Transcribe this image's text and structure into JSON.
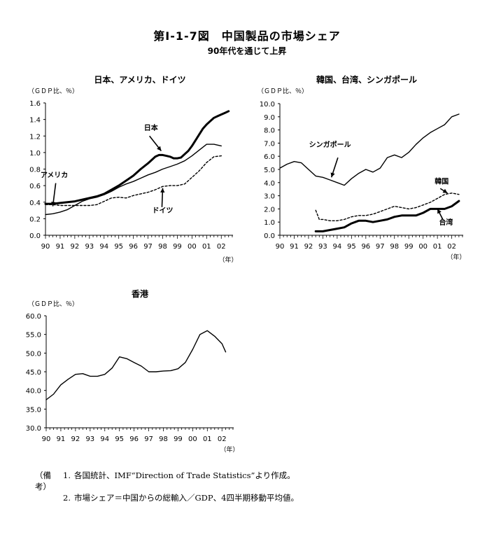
{
  "figure": {
    "title": "第Ⅰ-1-7図　中国製品の市場シェア",
    "subtitle": "90年代を通じて上昇"
  },
  "chart_data": [
    {
      "type": "line",
      "title": "日本、アメリカ、ドイツ",
      "ylabel": "（ＧＤＰ比、％）",
      "xlabel": "（年）",
      "categories": [
        "90",
        "91",
        "92",
        "93",
        "94",
        "95",
        "96",
        "97",
        "98",
        "99",
        "00",
        "01",
        "02"
      ],
      "ylim": [
        0,
        1.6
      ],
      "yticks": [
        "0.0",
        "0.2",
        "0.4",
        "0.6",
        "0.8",
        "1.0",
        "1.2",
        "1.4",
        "1.6"
      ],
      "series": [
        {
          "name": "日本",
          "style": "thick",
          "x": [
            1990.0,
            1990.5,
            1991.0,
            1991.5,
            1992.0,
            1992.5,
            1993.0,
            1993.5,
            1994.0,
            1994.5,
            1995.0,
            1995.5,
            1996.0,
            1996.5,
            1997.0,
            1997.25,
            1997.5,
            1997.75,
            1998.0,
            1998.25,
            1998.5,
            1998.75,
            1999.0,
            1999.25,
            1999.5,
            1999.75,
            2000.0,
            2000.25,
            2000.5,
            2000.75,
            2001.0,
            2001.25,
            2001.5,
            2001.75,
            2002.0,
            2002.25,
            2002.5
          ],
          "y": [
            0.38,
            0.38,
            0.39,
            0.4,
            0.41,
            0.43,
            0.45,
            0.47,
            0.5,
            0.55,
            0.6,
            0.66,
            0.72,
            0.8,
            0.87,
            0.91,
            0.95,
            0.97,
            0.97,
            0.96,
            0.95,
            0.93,
            0.93,
            0.94,
            0.98,
            1.02,
            1.08,
            1.15,
            1.22,
            1.29,
            1.34,
            1.38,
            1.42,
            1.44,
            1.46,
            1.48,
            1.5
          ]
        },
        {
          "name": "アメリカ",
          "style": "thin",
          "x": [
            1990.0,
            1990.5,
            1991.0,
            1991.5,
            1992.0,
            1992.5,
            1993.0,
            1993.5,
            1994.0,
            1994.5,
            1995.0,
            1995.5,
            1996.0,
            1996.5,
            1997.0,
            1997.5,
            1998.0,
            1998.5,
            1999.0,
            1999.5,
            2000.0,
            2000.5,
            2001.0,
            2001.5,
            2002.0
          ],
          "y": [
            0.25,
            0.26,
            0.28,
            0.31,
            0.36,
            0.41,
            0.44,
            0.46,
            0.49,
            0.53,
            0.58,
            0.62,
            0.65,
            0.69,
            0.73,
            0.76,
            0.8,
            0.83,
            0.86,
            0.9,
            0.96,
            1.03,
            1.1,
            1.1,
            1.08
          ]
        },
        {
          "name": "ドイツ",
          "style": "dashed",
          "x": [
            1990.0,
            1990.5,
            1991.0,
            1991.5,
            1992.0,
            1992.5,
            1993.0,
            1993.5,
            1994.0,
            1994.5,
            1995.0,
            1995.5,
            1996.0,
            1996.5,
            1997.0,
            1997.5,
            1998.0,
            1998.5,
            1999.0,
            1999.5,
            2000.0,
            2000.5,
            2001.0,
            2001.5,
            2002.0
          ],
          "y": [
            0.37,
            0.37,
            0.36,
            0.36,
            0.36,
            0.36,
            0.36,
            0.37,
            0.41,
            0.45,
            0.46,
            0.45,
            0.48,
            0.5,
            0.52,
            0.55,
            0.59,
            0.6,
            0.6,
            0.62,
            0.7,
            0.78,
            0.88,
            0.95,
            0.96
          ]
        }
      ],
      "labels": [
        {
          "text": "日本",
          "x": 1997.2,
          "y": 1.27,
          "ax": 1997.9,
          "ay": 1.02,
          "bx": 1997.1,
          "by": 1.2
        },
        {
          "text": "アメリカ",
          "x": 1990.6,
          "y": 0.7,
          "ax": 1990.5,
          "ay": 0.35,
          "bx": 1990.7,
          "by": 0.63
        },
        {
          "text": "ドイツ",
          "x": 1998.0,
          "y": 0.27,
          "ax": 1998.0,
          "ay": 0.57,
          "bx": 1997.95,
          "by": 0.34
        }
      ]
    },
    {
      "type": "line",
      "title": "韓国、台湾、シンガポール",
      "ylabel": "（ＧＤＰ比、％）",
      "xlabel": "（年）",
      "categories": [
        "90",
        "91",
        "92",
        "93",
        "94",
        "95",
        "96",
        "97",
        "98",
        "99",
        "00",
        "01",
        "02"
      ],
      "ylim": [
        0,
        10
      ],
      "yticks": [
        "0.0",
        "1.0",
        "2.0",
        "3.0",
        "4.0",
        "5.0",
        "6.0",
        "7.0",
        "8.0",
        "9.0",
        "10.0"
      ],
      "series": [
        {
          "name": "シンガポール",
          "style": "thin",
          "x": [
            1990.0,
            1990.5,
            1991.0,
            1991.5,
            1992.0,
            1992.5,
            1993.0,
            1993.5,
            1994.0,
            1994.5,
            1995.0,
            1995.5,
            1996.0,
            1996.5,
            1997.0,
            1997.5,
            1998.0,
            1998.5,
            1999.0,
            1999.5,
            2000.0,
            2000.5,
            2001.0,
            2001.5,
            2002.0,
            2002.5
          ],
          "y": [
            5.1,
            5.4,
            5.6,
            5.5,
            5.0,
            4.5,
            4.4,
            4.2,
            4.0,
            3.8,
            4.3,
            4.7,
            5.0,
            4.8,
            5.1,
            5.9,
            6.1,
            5.9,
            6.3,
            6.9,
            7.4,
            7.8,
            8.1,
            8.4,
            9.0,
            9.2
          ]
        },
        {
          "name": "韓国",
          "style": "dashed",
          "x": [
            1992.5,
            1992.75,
            1993.0,
            1993.5,
            1994.0,
            1994.5,
            1995.0,
            1995.5,
            1996.0,
            1996.5,
            1997.0,
            1997.5,
            1998.0,
            1998.5,
            1999.0,
            1999.5,
            2000.0,
            2000.5,
            2001.0,
            2001.5,
            2002.0,
            2002.5
          ],
          "y": [
            1.9,
            1.2,
            1.2,
            1.1,
            1.1,
            1.2,
            1.4,
            1.5,
            1.5,
            1.6,
            1.8,
            2.0,
            2.2,
            2.1,
            2.0,
            2.1,
            2.3,
            2.5,
            2.8,
            3.1,
            3.2,
            3.1
          ]
        },
        {
          "name": "台湾",
          "style": "thick",
          "x": [
            1992.5,
            1993.0,
            1993.5,
            1994.0,
            1994.5,
            1995.0,
            1995.5,
            1996.0,
            1996.5,
            1997.0,
            1997.5,
            1998.0,
            1998.5,
            1999.0,
            1999.5,
            2000.0,
            2000.5,
            2001.0,
            2001.5,
            2002.0,
            2002.5
          ],
          "y": [
            0.3,
            0.3,
            0.4,
            0.5,
            0.6,
            0.9,
            1.1,
            1.1,
            1.0,
            1.1,
            1.2,
            1.4,
            1.5,
            1.5,
            1.5,
            1.7,
            2.0,
            2.0,
            2.0,
            2.2,
            2.6
          ]
        }
      ],
      "labels": [
        {
          "text": "シンガポール",
          "x": 1993.5,
          "y": 6.7,
          "ax": 1993.6,
          "ay": 4.4,
          "bx": 1994.05,
          "by": 5.9
        },
        {
          "text": "韓国",
          "x": 2001.3,
          "y": 3.9,
          "ax": 2001.7,
          "ay": 3.2,
          "bx": 2001.2,
          "by": 3.55
        },
        {
          "text": "台湾",
          "x": 2001.6,
          "y": 0.8,
          "ax": 2001.0,
          "ay": 2.0,
          "bx": 2001.4,
          "by": 1.15
        }
      ]
    },
    {
      "type": "line",
      "title": "香港",
      "ylabel": "（ＧＤＰ比、％）",
      "xlabel": "（年）",
      "categories": [
        "90",
        "91",
        "92",
        "93",
        "94",
        "95",
        "96",
        "97",
        "98",
        "99",
        "00",
        "01",
        "02"
      ],
      "ylim": [
        30,
        60
      ],
      "yticks": [
        "30.0",
        "35.0",
        "40.0",
        "45.0",
        "50.0",
        "55.0",
        "60.0"
      ],
      "series": [
        {
          "name": "香港",
          "style": "thin",
          "x": [
            1990.0,
            1990.5,
            1991.0,
            1991.5,
            1992.0,
            1992.5,
            1993.0,
            1993.5,
            1994.0,
            1994.5,
            1995.0,
            1995.5,
            1996.0,
            1996.5,
            1997.0,
            1997.5,
            1998.0,
            1998.5,
            1999.0,
            1999.5,
            2000.0,
            2000.5,
            2001.0,
            2001.5,
            2002.0,
            2002.25
          ],
          "y": [
            37.5,
            39.0,
            41.5,
            43.0,
            44.3,
            44.5,
            43.8,
            43.8,
            44.3,
            46.0,
            49.0,
            48.5,
            47.5,
            46.5,
            45.0,
            45.0,
            45.2,
            45.3,
            45.8,
            47.5,
            51.0,
            55.0,
            56.0,
            54.5,
            52.5,
            50.3
          ]
        }
      ],
      "labels": []
    }
  ],
  "notes": {
    "label": "（備考）",
    "lines": [
      {
        "num": "1.",
        "text": "各国統計、IMF“Direction of Trade Statistics”より作成。"
      },
      {
        "num": "2.",
        "text": "市場シェア＝中国からの総輸入／GDP、4四半期移動平均値。"
      }
    ]
  }
}
